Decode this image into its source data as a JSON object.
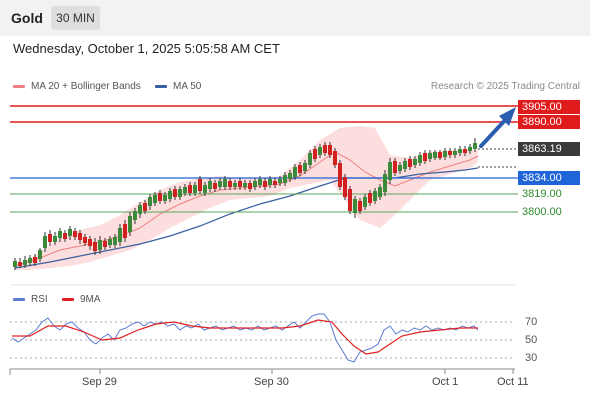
{
  "header": {
    "title": "Gold",
    "timeframe": "30 MIN"
  },
  "datetime": "Wednesday, October 1, 2025 5:05:58 AM CET",
  "legend": {
    "ma": "MA 20 + Bollinger Bands",
    "ma50": "MA 50",
    "credit": "Research © 2025 Trading Central"
  },
  "levels": {
    "r2": "3905.00",
    "r1": "3890.00",
    "last": "3863.19",
    "pivot": "3834.00",
    "s1": "3819.00",
    "s2": "3800.00"
  },
  "rsi_legend": {
    "rsi": "RSI",
    "ma": "9MA"
  },
  "rsi_axis": {
    "a70": "70",
    "a50": "50",
    "a30": "30"
  },
  "xaxis": {
    "t1": "Sep 29",
    "t2": "Sep 30",
    "t3": "Oct 1",
    "t4": "Oct 11"
  },
  "colors": {
    "red": "#e01b1b",
    "blue": "#1f64d8",
    "green": "#2f8a2f",
    "band": "#fbd0d0",
    "ma20": "#f08080",
    "ma50": "#3a5fa0",
    "rsi": "#5b7bd5",
    "rsi_ma": "#e02020"
  }
}
